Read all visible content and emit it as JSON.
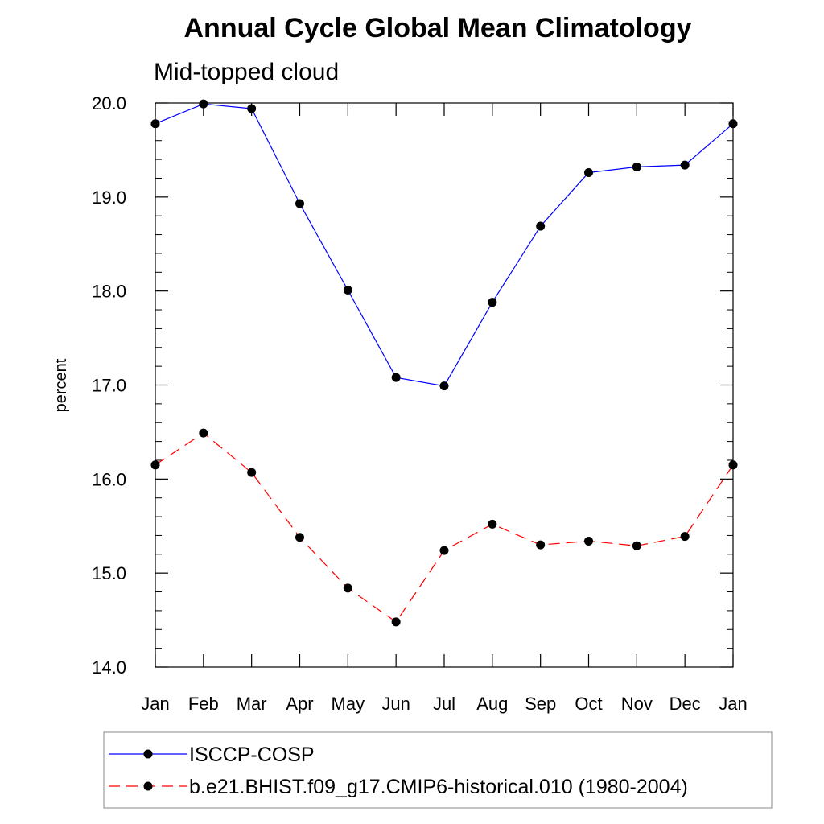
{
  "chart_data": {
    "type": "line",
    "title": "Annual Cycle Global Mean Climatology",
    "subtitle": "Mid-topped cloud",
    "xlabel": "",
    "ylabel": "percent",
    "categories": [
      "Jan",
      "Feb",
      "Mar",
      "Apr",
      "May",
      "Jun",
      "Jul",
      "Aug",
      "Sep",
      "Oct",
      "Nov",
      "Dec",
      "Jan"
    ],
    "ylim": [
      14.0,
      20.0
    ],
    "yticks": [
      "14.0",
      "15.0",
      "16.0",
      "17.0",
      "18.0",
      "19.0",
      "20.0"
    ],
    "grid": false,
    "legend_position": "bottom",
    "series": [
      {
        "name": "ISCCP-COSP",
        "color": "#0000ff",
        "style": "solid",
        "marker": "circle",
        "values": [
          19.78,
          19.99,
          19.94,
          18.93,
          18.01,
          17.08,
          16.99,
          17.88,
          18.69,
          19.26,
          19.32,
          19.34,
          19.78
        ]
      },
      {
        "name": "b.e21.BHIST.f09_g17.CMIP6-historical.010 (1980-2004)",
        "color": "#ff0000",
        "style": "dashed",
        "marker": "circle",
        "values": [
          16.15,
          16.49,
          16.07,
          15.38,
          14.84,
          14.48,
          15.24,
          15.52,
          15.3,
          15.34,
          15.29,
          15.39,
          16.15
        ]
      }
    ]
  }
}
